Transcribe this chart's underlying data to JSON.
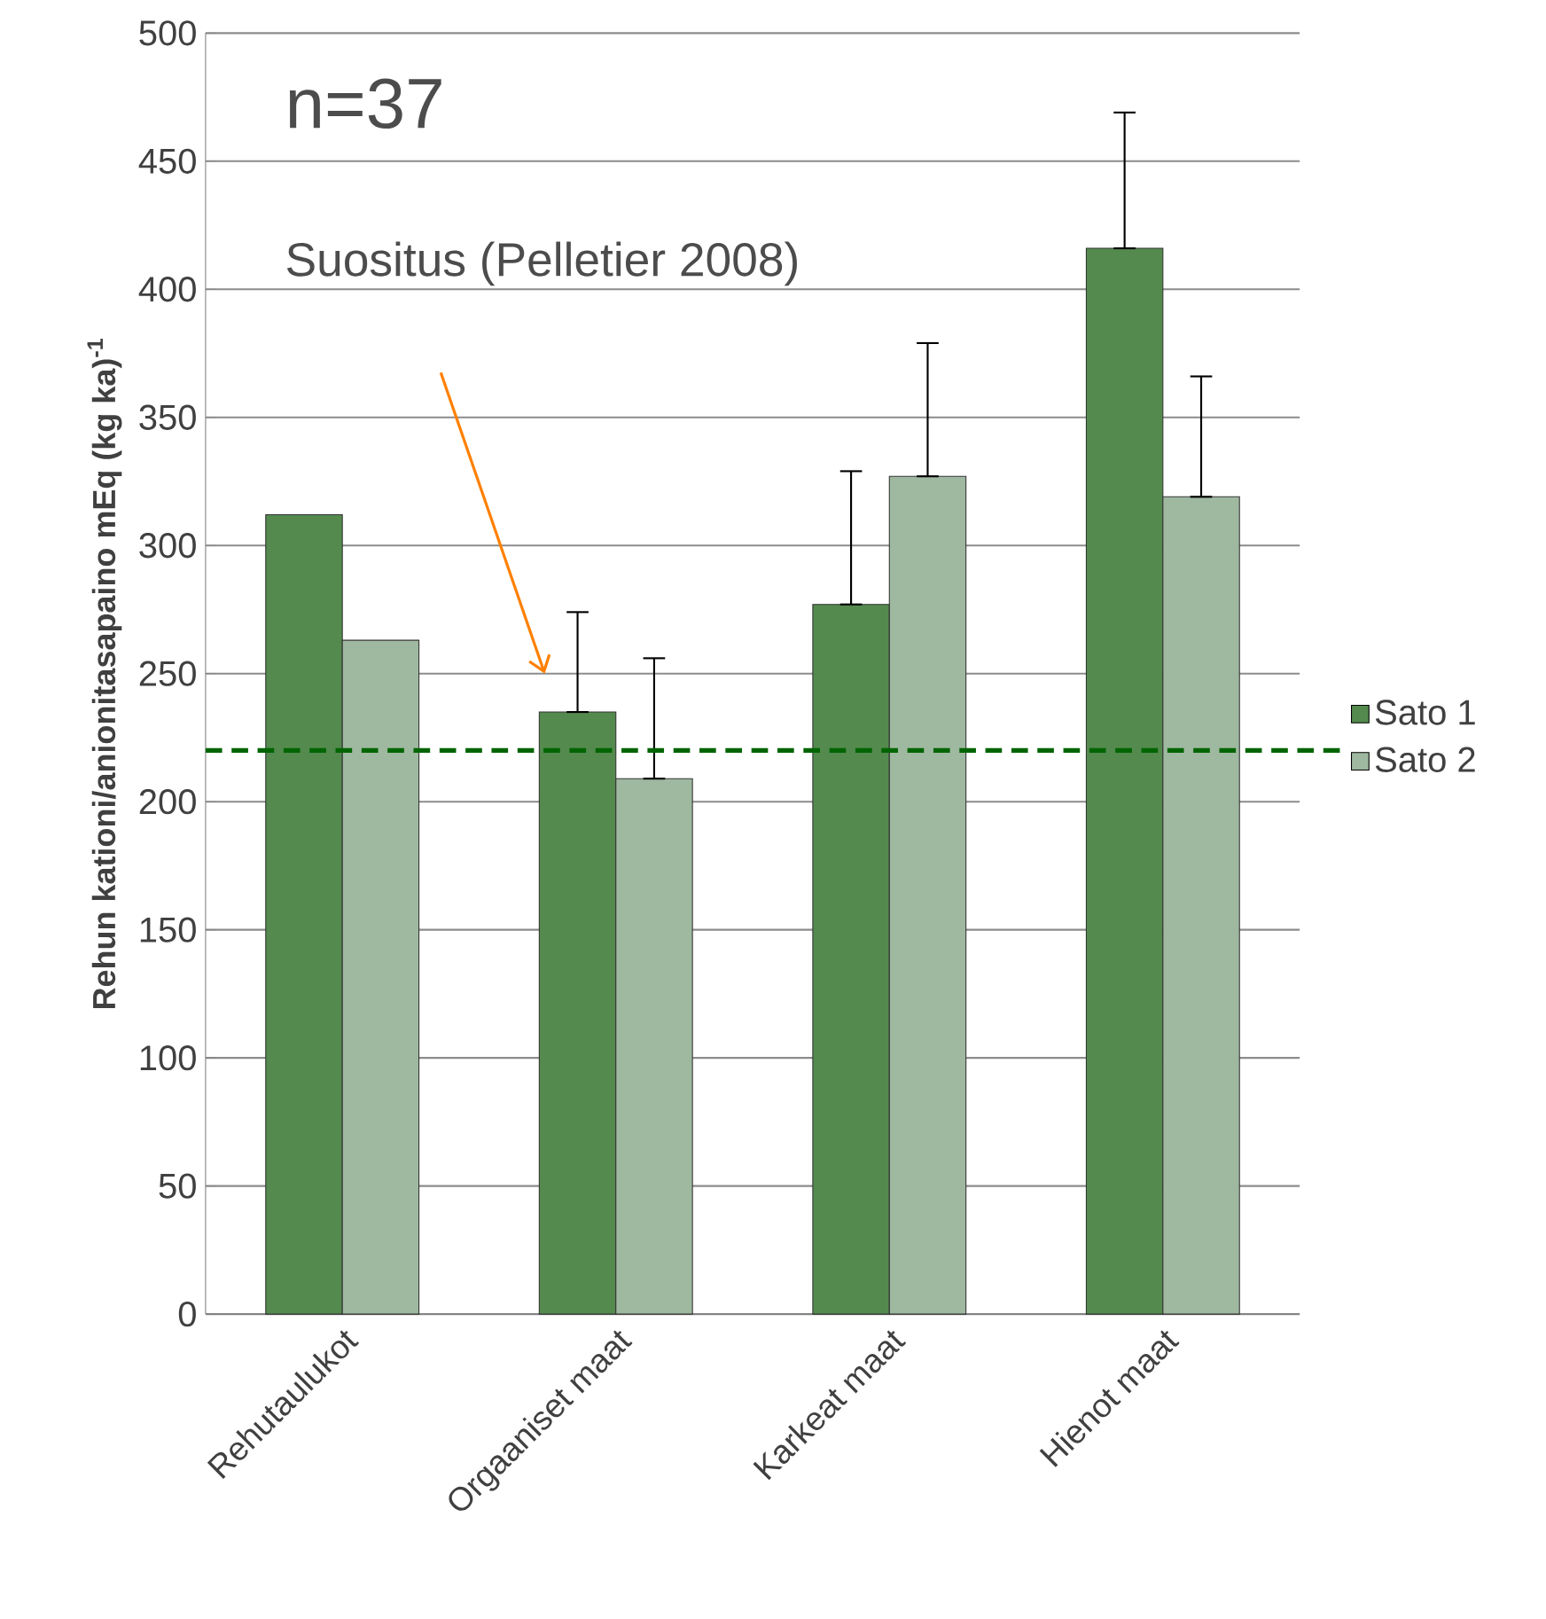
{
  "chart_data": {
    "type": "bar",
    "ylabel": "Rehun kationi/anionitasapaino mEq (kg ka)$^{-1}$",
    "categories": [
      "Rehutaulukot",
      "Orgaaniset maat",
      "Karkeat maat",
      "Hienot maat"
    ],
    "series": [
      {
        "name": "Sato 1",
        "color": "#548a4e",
        "values": [
          312,
          235,
          277,
          416
        ],
        "errors": [
          null,
          [
            235,
            274
          ],
          [
            277,
            329
          ],
          [
            416,
            469
          ]
        ]
      },
      {
        "name": "Sato 2",
        "color": "#9fb8a0",
        "values": [
          263,
          209,
          327,
          319
        ],
        "errors": [
          null,
          [
            209,
            256
          ],
          [
            327,
            379
          ],
          [
            319,
            366
          ]
        ]
      }
    ],
    "ylim": [
      0,
      500
    ],
    "yticks": [
      0,
      50,
      100,
      150,
      200,
      250,
      300,
      350,
      400,
      450,
      500
    ],
    "grid": "y",
    "legend": "right",
    "ref_lines": [
      {
        "axis": "y",
        "value": 220,
        "color": "#006400",
        "line_style": "dashed"
      }
    ],
    "annotations": [
      "n=37",
      "Suositus (Pelletier 2008)"
    ]
  }
}
